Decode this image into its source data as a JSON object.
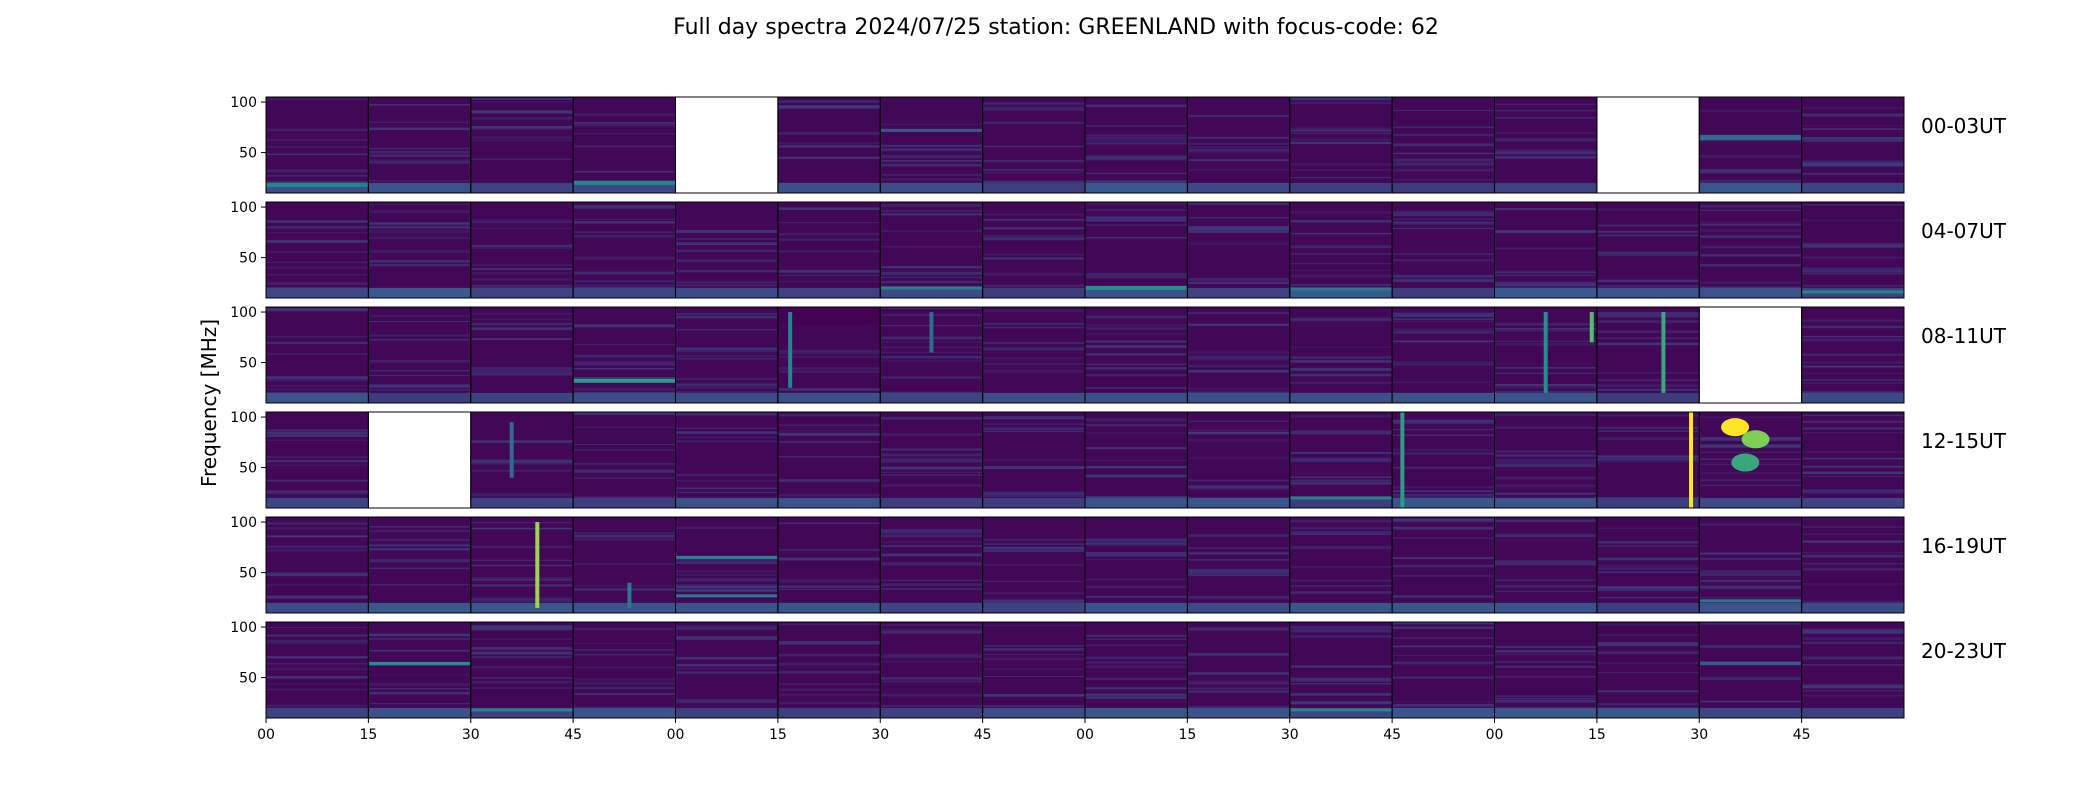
{
  "chart_data": {
    "type": "heatmap",
    "title": "Full day spectra 2024/07/25 station: GREENLAND with focus-code: 62",
    "ylabel": "Frequency [MHz]",
    "ylim": [
      10,
      105
    ],
    "yticks": [
      50,
      100
    ],
    "xticks": [
      "00",
      "15",
      "30",
      "45",
      "00",
      "15",
      "30",
      "45",
      "00",
      "15",
      "30",
      "45",
      "00",
      "15",
      "30",
      "45"
    ],
    "colormap": "viridis",
    "panels_per_row": 16,
    "panel_minutes": 15,
    "rows": [
      {
        "label": "00-03UT",
        "missing": [
          4,
          13
        ],
        "features": [
          {
            "panel": 0,
            "kind": "band",
            "f": 18,
            "intensity": 0.45,
            "width": 4
          },
          {
            "panel": 3,
            "kind": "band",
            "f": 20,
            "intensity": 0.45,
            "width": 4
          },
          {
            "panel": 6,
            "kind": "band",
            "f": 72,
            "intensity": 0.28,
            "width": 3
          },
          {
            "panel": 14,
            "kind": "band",
            "f": 65,
            "intensity": 0.35,
            "width": 5
          }
        ]
      },
      {
        "label": "04-07UT",
        "missing": [],
        "features": [
          {
            "panel": 6,
            "kind": "band",
            "f": 20,
            "intensity": 0.45,
            "width": 3
          },
          {
            "panel": 8,
            "kind": "band",
            "f": 20,
            "intensity": 0.5,
            "width": 4
          },
          {
            "panel": 10,
            "kind": "band",
            "f": 19,
            "intensity": 0.4,
            "width": 3
          },
          {
            "panel": 15,
            "kind": "band",
            "f": 16,
            "intensity": 0.45,
            "width": 3
          }
        ]
      },
      {
        "label": "08-11UT",
        "missing": [
          14
        ],
        "features": [
          {
            "panel": 3,
            "kind": "band",
            "f": 32,
            "intensity": 0.55,
            "width": 4
          },
          {
            "panel": 5,
            "kind": "dark",
            "f": 95,
            "intensity": 0.0,
            "width": 15
          },
          {
            "panel": 5,
            "kind": "spike",
            "t": 0.12,
            "f0": 25,
            "f1": 100,
            "intensity": 0.45
          },
          {
            "panel": 6,
            "kind": "spike",
            "t": 0.5,
            "f0": 60,
            "f1": 100,
            "intensity": 0.35
          },
          {
            "panel": 12,
            "kind": "spike",
            "t": 0.5,
            "f0": 20,
            "f1": 100,
            "intensity": 0.5
          },
          {
            "panel": 12,
            "kind": "spike",
            "t": 0.95,
            "f0": 70,
            "f1": 100,
            "intensity": 0.7
          },
          {
            "panel": 13,
            "kind": "spike",
            "t": 0.65,
            "f0": 20,
            "f1": 100,
            "intensity": 0.6
          }
        ]
      },
      {
        "label": "12-15UT",
        "missing": [
          1
        ],
        "features": [
          {
            "panel": 2,
            "kind": "spike",
            "t": 0.4,
            "f0": 40,
            "f1": 95,
            "intensity": 0.35
          },
          {
            "panel": 10,
            "kind": "band",
            "f": 20,
            "intensity": 0.45,
            "width": 3
          },
          {
            "panel": 11,
            "kind": "spike",
            "t": 0.1,
            "f0": 10,
            "f1": 105,
            "intensity": 0.55
          },
          {
            "panel": 13,
            "kind": "spike",
            "t": 0.92,
            "f0": 10,
            "f1": 105,
            "intensity": 1.0
          },
          {
            "panel": 14,
            "kind": "blob",
            "t": 0.35,
            "f": 90,
            "intensity": 1.0
          },
          {
            "panel": 14,
            "kind": "blob",
            "t": 0.55,
            "f": 78,
            "intensity": 0.8
          },
          {
            "panel": 14,
            "kind": "blob",
            "t": 0.45,
            "f": 55,
            "intensity": 0.6
          }
        ]
      },
      {
        "label": "16-19UT",
        "missing": [],
        "features": [
          {
            "panel": 2,
            "kind": "spike",
            "t": 0.65,
            "f0": 15,
            "f1": 100,
            "intensity": 0.85
          },
          {
            "panel": 4,
            "kind": "band",
            "f": 65,
            "intensity": 0.45,
            "width": 3
          },
          {
            "panel": 4,
            "kind": "band",
            "f": 27,
            "intensity": 0.4,
            "width": 3
          },
          {
            "panel": 3,
            "kind": "spike",
            "t": 0.55,
            "f0": 15,
            "f1": 40,
            "intensity": 0.4
          },
          {
            "panel": 14,
            "kind": "band",
            "f": 22,
            "intensity": 0.4,
            "width": 3
          }
        ]
      },
      {
        "label": "20-23UT",
        "missing": [],
        "features": [
          {
            "panel": 1,
            "kind": "band",
            "f": 64,
            "intensity": 0.5,
            "width": 3
          },
          {
            "panel": 2,
            "kind": "band",
            "f": 18,
            "intensity": 0.45,
            "width": 3
          },
          {
            "panel": 10,
            "kind": "band",
            "f": 18,
            "intensity": 0.45,
            "width": 3
          },
          {
            "panel": 14,
            "kind": "band",
            "f": 64,
            "intensity": 0.3,
            "width": 3
          }
        ]
      }
    ]
  }
}
